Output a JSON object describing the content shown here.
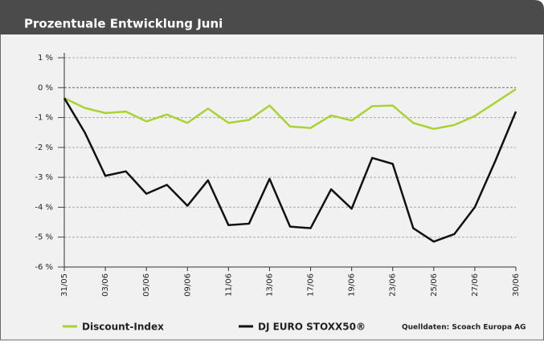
{
  "chart_data": {
    "type": "line",
    "title": "Prozentuale Entwicklung Juni",
    "categories": [
      "31/05",
      null,
      "03/06",
      null,
      "05/06",
      null,
      "09/06",
      null,
      "11/06",
      null,
      "13/06",
      null,
      "17/06",
      null,
      "19/06",
      null,
      "23/06",
      null,
      "25/06",
      null,
      "27/06",
      null,
      "30/06"
    ],
    "series": [
      {
        "name": "Discount-Index",
        "color": "#a8d433",
        "values": [
          -0.35,
          -0.68,
          -0.85,
          -0.8,
          -1.13,
          -0.9,
          -1.18,
          -0.7,
          -1.18,
          -1.08,
          -0.6,
          -1.3,
          -1.35,
          -0.93,
          -1.1,
          -0.62,
          -0.6,
          -1.18,
          -1.38,
          -1.25,
          -0.95,
          -0.5,
          -0.05
        ]
      },
      {
        "name": "DJ EURO STOXX50®",
        "color": "#111111",
        "values": [
          -0.35,
          -1.5,
          -2.95,
          -2.8,
          -3.55,
          -3.25,
          -3.95,
          -3.1,
          -4.6,
          -4.55,
          -3.05,
          -4.65,
          -4.7,
          -3.4,
          -4.05,
          -2.35,
          -2.55,
          -4.7,
          -5.15,
          -4.9,
          -4.0,
          -2.45,
          -0.8
        ]
      }
    ],
    "ylim": [
      -6,
      1
    ],
    "yticks": [
      {
        "value": 1,
        "label": "1 %"
      },
      {
        "value": 0,
        "label": "0 %"
      },
      {
        "value": -1,
        "label": "-1 %"
      },
      {
        "value": -2,
        "label": "-2 %"
      },
      {
        "value": -3,
        "label": "-3 %"
      },
      {
        "value": -4,
        "label": "-4 %"
      },
      {
        "value": -5,
        "label": "-5 %"
      },
      {
        "value": -6,
        "label": "-6 %"
      }
    ],
    "grid": true,
    "source": "Quelldaten: Scoach Europa AG"
  }
}
